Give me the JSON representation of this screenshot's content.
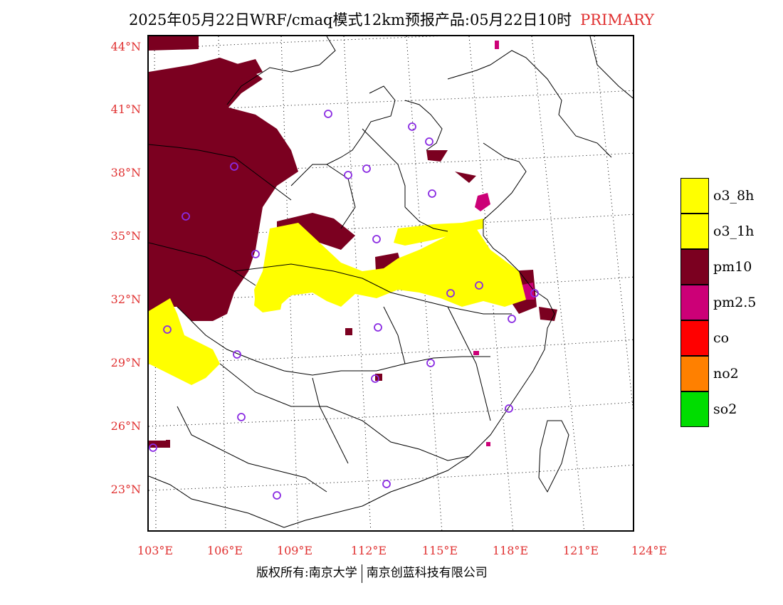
{
  "header": {
    "title": "2025年05月22日WRF/cmaq模式12km预报产品:05月22日10时",
    "mode": "PRIMARY"
  },
  "map": {
    "lat_labels": [
      "44°N",
      "41°N",
      "38°N",
      "35°N",
      "32°N",
      "29°N",
      "26°N",
      "23°N"
    ],
    "lon_labels": [
      "103°E",
      "106°E",
      "109°E",
      "112°E",
      "115°E",
      "118°E",
      "121°E",
      "124°E"
    ]
  },
  "legend": [
    {
      "label": "o3_8h",
      "color": "#ffff00"
    },
    {
      "label": "o3_1h",
      "color": "#ffff00"
    },
    {
      "label": "pm10",
      "color": "#7b0020"
    },
    {
      "label": "pm2.5",
      "color": "#cc0077"
    },
    {
      "label": "co",
      "color": "#ff0000"
    },
    {
      "label": "no2",
      "color": "#ff8000"
    },
    {
      "label": "so2",
      "color": "#00dd00"
    }
  ],
  "colors": {
    "pm10": "#7b0020",
    "pm25": "#cc0077",
    "o3": "#ffff00",
    "station_marker": "#8a2be2",
    "axis_label": "#e03030"
  },
  "footer": {
    "left": "版权所有:南京大学",
    "right": "南京创蓝科技有限公司"
  }
}
